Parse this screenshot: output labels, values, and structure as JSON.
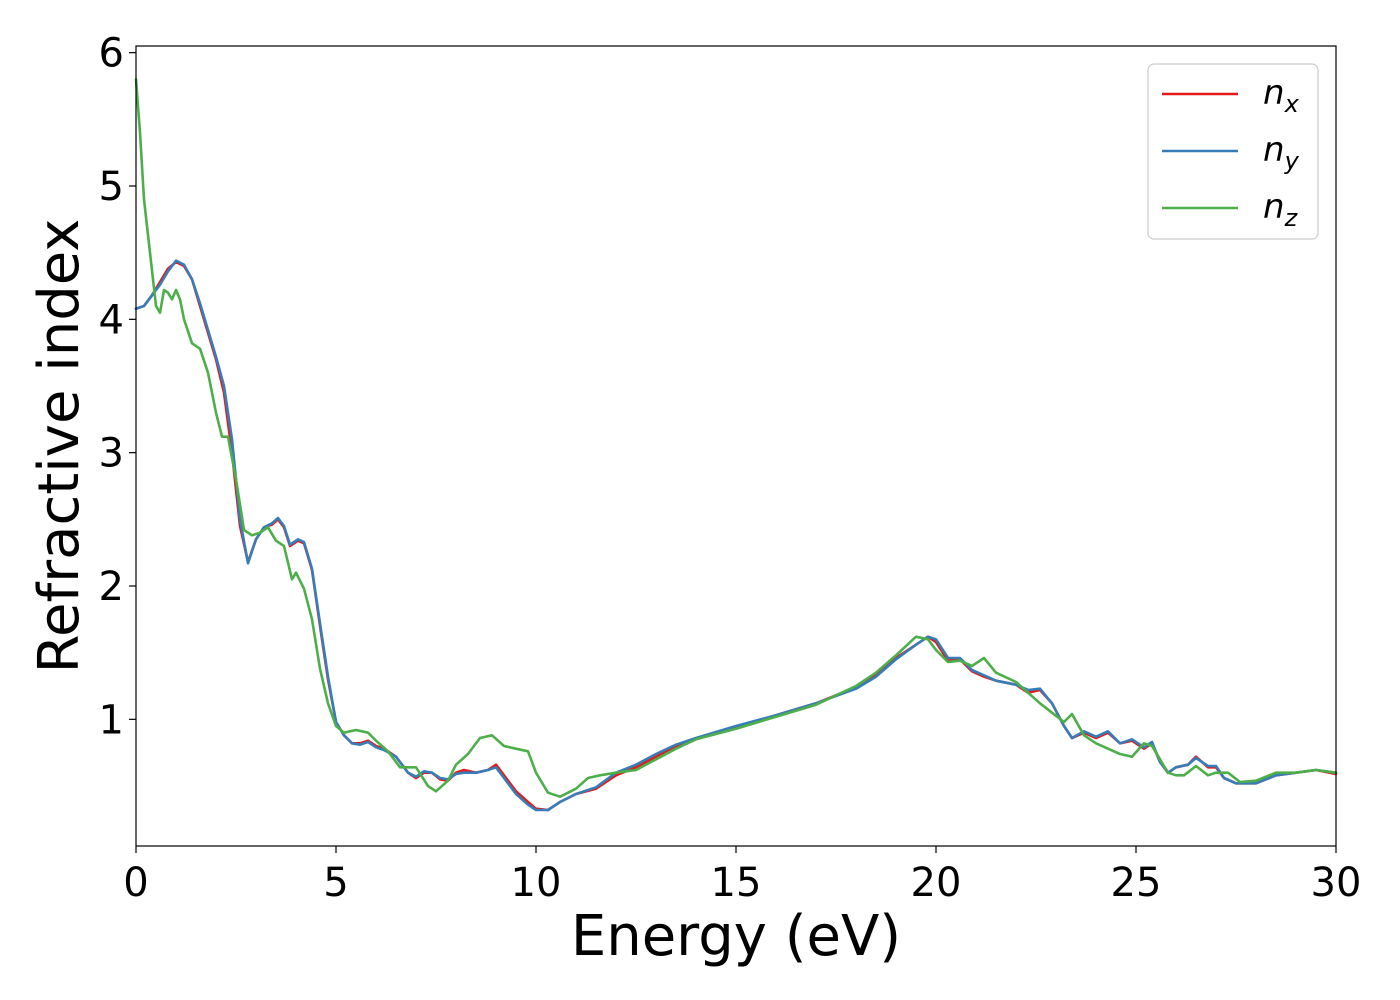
{
  "chart_data": {
    "type": "line",
    "title": "",
    "xlabel": "Energy (eV)",
    "ylabel": "Refractive index",
    "xlim": [
      0,
      30
    ],
    "ylim": [
      0.05,
      6.05
    ],
    "xticks": [
      0,
      5,
      10,
      15,
      20,
      25,
      30
    ],
    "yticks": [
      1,
      2,
      3,
      4,
      5,
      6
    ],
    "xtick_labels": [
      "0",
      "5",
      "10",
      "15",
      "20",
      "25",
      "30"
    ],
    "ytick_labels": [
      "1",
      "2",
      "3",
      "4",
      "5",
      "6"
    ],
    "grid": false,
    "legend_position": "top-right",
    "series": [
      {
        "name": "n_x",
        "label_base": "n",
        "label_sub": "x",
        "color": "#e41a1c",
        "points": [
          [
            0,
            4.08
          ],
          [
            0.2,
            4.1
          ],
          [
            0.4,
            4.18
          ],
          [
            0.6,
            4.28
          ],
          [
            0.8,
            4.38
          ],
          [
            1.0,
            4.43
          ],
          [
            1.2,
            4.4
          ],
          [
            1.4,
            4.3
          ],
          [
            1.6,
            4.1
          ],
          [
            1.8,
            3.9
          ],
          [
            2.0,
            3.7
          ],
          [
            2.2,
            3.45
          ],
          [
            2.4,
            3.0
          ],
          [
            2.6,
            2.45
          ],
          [
            2.8,
            2.18
          ],
          [
            3.0,
            2.35
          ],
          [
            3.2,
            2.44
          ],
          [
            3.4,
            2.46
          ],
          [
            3.55,
            2.5
          ],
          [
            3.7,
            2.44
          ],
          [
            3.85,
            2.3
          ],
          [
            4.05,
            2.34
          ],
          [
            4.2,
            2.32
          ],
          [
            4.4,
            2.12
          ],
          [
            4.6,
            1.7
          ],
          [
            4.8,
            1.3
          ],
          [
            5.0,
            0.98
          ],
          [
            5.2,
            0.88
          ],
          [
            5.4,
            0.82
          ],
          [
            5.6,
            0.82
          ],
          [
            5.8,
            0.84
          ],
          [
            6.0,
            0.8
          ],
          [
            6.2,
            0.78
          ],
          [
            6.5,
            0.72
          ],
          [
            6.8,
            0.6
          ],
          [
            7.0,
            0.56
          ],
          [
            7.2,
            0.6
          ],
          [
            7.4,
            0.6
          ],
          [
            7.6,
            0.55
          ],
          [
            7.8,
            0.54
          ],
          [
            8.0,
            0.6
          ],
          [
            8.2,
            0.62
          ],
          [
            8.5,
            0.6
          ],
          [
            8.8,
            0.62
          ],
          [
            9.0,
            0.66
          ],
          [
            9.2,
            0.58
          ],
          [
            9.5,
            0.46
          ],
          [
            9.8,
            0.38
          ],
          [
            10.0,
            0.33
          ],
          [
            10.3,
            0.32
          ],
          [
            10.6,
            0.38
          ],
          [
            11.0,
            0.44
          ],
          [
            11.5,
            0.48
          ],
          [
            12.0,
            0.58
          ],
          [
            12.5,
            0.64
          ],
          [
            13.0,
            0.72
          ],
          [
            13.5,
            0.8
          ],
          [
            14.0,
            0.85
          ],
          [
            15.0,
            0.94
          ],
          [
            16.0,
            1.03
          ],
          [
            17.0,
            1.12
          ],
          [
            18.0,
            1.24
          ],
          [
            18.5,
            1.33
          ],
          [
            19.0,
            1.46
          ],
          [
            19.5,
            1.56
          ],
          [
            19.8,
            1.62
          ],
          [
            20.0,
            1.58
          ],
          [
            20.3,
            1.44
          ],
          [
            20.6,
            1.45
          ],
          [
            20.9,
            1.36
          ],
          [
            21.2,
            1.32
          ],
          [
            21.5,
            1.29
          ],
          [
            22.0,
            1.26
          ],
          [
            22.3,
            1.2
          ],
          [
            22.6,
            1.22
          ],
          [
            22.9,
            1.12
          ],
          [
            23.2,
            0.95
          ],
          [
            23.4,
            0.86
          ],
          [
            23.7,
            0.9
          ],
          [
            24.0,
            0.86
          ],
          [
            24.3,
            0.9
          ],
          [
            24.6,
            0.82
          ],
          [
            24.9,
            0.84
          ],
          [
            25.2,
            0.78
          ],
          [
            25.4,
            0.82
          ],
          [
            25.6,
            0.68
          ],
          [
            25.8,
            0.6
          ],
          [
            26.0,
            0.64
          ],
          [
            26.3,
            0.66
          ],
          [
            26.5,
            0.72
          ],
          [
            26.8,
            0.64
          ],
          [
            27.0,
            0.64
          ],
          [
            27.2,
            0.56
          ],
          [
            27.5,
            0.52
          ],
          [
            28.0,
            0.52
          ],
          [
            28.5,
            0.58
          ],
          [
            29.0,
            0.6
          ],
          [
            29.5,
            0.62
          ],
          [
            30.0,
            0.59
          ]
        ]
      },
      {
        "name": "n_y",
        "label_base": "n",
        "label_sub": "y",
        "color": "#377eb8",
        "points": [
          [
            0,
            4.08
          ],
          [
            0.2,
            4.1
          ],
          [
            0.4,
            4.18
          ],
          [
            0.6,
            4.26
          ],
          [
            0.8,
            4.36
          ],
          [
            1.0,
            4.44
          ],
          [
            1.2,
            4.41
          ],
          [
            1.4,
            4.3
          ],
          [
            1.6,
            4.12
          ],
          [
            1.8,
            3.92
          ],
          [
            2.0,
            3.72
          ],
          [
            2.2,
            3.5
          ],
          [
            2.4,
            3.1
          ],
          [
            2.6,
            2.5
          ],
          [
            2.8,
            2.17
          ],
          [
            3.0,
            2.35
          ],
          [
            3.2,
            2.44
          ],
          [
            3.4,
            2.47
          ],
          [
            3.55,
            2.51
          ],
          [
            3.7,
            2.45
          ],
          [
            3.85,
            2.31
          ],
          [
            4.05,
            2.35
          ],
          [
            4.2,
            2.33
          ],
          [
            4.4,
            2.13
          ],
          [
            4.6,
            1.72
          ],
          [
            4.8,
            1.32
          ],
          [
            5.0,
            0.98
          ],
          [
            5.2,
            0.88
          ],
          [
            5.4,
            0.82
          ],
          [
            5.6,
            0.81
          ],
          [
            5.8,
            0.83
          ],
          [
            6.0,
            0.79
          ],
          [
            6.2,
            0.77
          ],
          [
            6.5,
            0.72
          ],
          [
            6.8,
            0.6
          ],
          [
            7.0,
            0.57
          ],
          [
            7.2,
            0.61
          ],
          [
            7.4,
            0.6
          ],
          [
            7.6,
            0.56
          ],
          [
            7.8,
            0.55
          ],
          [
            8.0,
            0.59
          ],
          [
            8.2,
            0.6
          ],
          [
            8.5,
            0.6
          ],
          [
            8.8,
            0.62
          ],
          [
            9.0,
            0.64
          ],
          [
            9.2,
            0.56
          ],
          [
            9.5,
            0.44
          ],
          [
            9.8,
            0.36
          ],
          [
            10.0,
            0.32
          ],
          [
            10.3,
            0.32
          ],
          [
            10.6,
            0.38
          ],
          [
            11.0,
            0.44
          ],
          [
            11.5,
            0.49
          ],
          [
            12.0,
            0.6
          ],
          [
            12.5,
            0.66
          ],
          [
            13.0,
            0.74
          ],
          [
            13.5,
            0.81
          ],
          [
            14.0,
            0.86
          ],
          [
            15.0,
            0.95
          ],
          [
            16.0,
            1.03
          ],
          [
            17.0,
            1.12
          ],
          [
            18.0,
            1.23
          ],
          [
            18.5,
            1.32
          ],
          [
            19.0,
            1.45
          ],
          [
            19.5,
            1.56
          ],
          [
            19.8,
            1.62
          ],
          [
            20.0,
            1.6
          ],
          [
            20.3,
            1.46
          ],
          [
            20.6,
            1.46
          ],
          [
            20.9,
            1.37
          ],
          [
            21.2,
            1.33
          ],
          [
            21.5,
            1.29
          ],
          [
            22.0,
            1.26
          ],
          [
            22.3,
            1.22
          ],
          [
            22.6,
            1.23
          ],
          [
            22.9,
            1.12
          ],
          [
            23.2,
            0.95
          ],
          [
            23.4,
            0.86
          ],
          [
            23.7,
            0.91
          ],
          [
            24.0,
            0.87
          ],
          [
            24.3,
            0.91
          ],
          [
            24.6,
            0.82
          ],
          [
            24.9,
            0.85
          ],
          [
            25.2,
            0.79
          ],
          [
            25.4,
            0.83
          ],
          [
            25.6,
            0.68
          ],
          [
            25.8,
            0.6
          ],
          [
            26.0,
            0.64
          ],
          [
            26.3,
            0.66
          ],
          [
            26.5,
            0.71
          ],
          [
            26.8,
            0.65
          ],
          [
            27.0,
            0.65
          ],
          [
            27.2,
            0.56
          ],
          [
            27.5,
            0.52
          ],
          [
            28.0,
            0.52
          ],
          [
            28.5,
            0.58
          ],
          [
            29.0,
            0.6
          ],
          [
            29.5,
            0.62
          ],
          [
            30.0,
            0.6
          ]
        ]
      },
      {
        "name": "n_z",
        "label_base": "n",
        "label_sub": "z",
        "color": "#4daf4a",
        "points": [
          [
            0,
            5.8
          ],
          [
            0.1,
            5.4
          ],
          [
            0.2,
            4.9
          ],
          [
            0.35,
            4.5
          ],
          [
            0.5,
            4.1
          ],
          [
            0.6,
            4.05
          ],
          [
            0.7,
            4.22
          ],
          [
            0.8,
            4.2
          ],
          [
            0.9,
            4.15
          ],
          [
            1.0,
            4.22
          ],
          [
            1.1,
            4.15
          ],
          [
            1.2,
            4.0
          ],
          [
            1.4,
            3.82
          ],
          [
            1.6,
            3.78
          ],
          [
            1.8,
            3.6
          ],
          [
            2.0,
            3.3
          ],
          [
            2.15,
            3.12
          ],
          [
            2.3,
            3.12
          ],
          [
            2.5,
            2.8
          ],
          [
            2.7,
            2.42
          ],
          [
            2.9,
            2.38
          ],
          [
            3.1,
            2.4
          ],
          [
            3.3,
            2.44
          ],
          [
            3.5,
            2.34
          ],
          [
            3.7,
            2.3
          ],
          [
            3.9,
            2.05
          ],
          [
            4.0,
            2.1
          ],
          [
            4.2,
            1.98
          ],
          [
            4.4,
            1.75
          ],
          [
            4.6,
            1.38
          ],
          [
            4.8,
            1.12
          ],
          [
            5.0,
            0.95
          ],
          [
            5.2,
            0.9
          ],
          [
            5.5,
            0.92
          ],
          [
            5.8,
            0.9
          ],
          [
            6.0,
            0.84
          ],
          [
            6.3,
            0.76
          ],
          [
            6.6,
            0.64
          ],
          [
            7.0,
            0.64
          ],
          [
            7.3,
            0.5
          ],
          [
            7.5,
            0.46
          ],
          [
            7.8,
            0.54
          ],
          [
            8.0,
            0.66
          ],
          [
            8.3,
            0.74
          ],
          [
            8.6,
            0.86
          ],
          [
            8.9,
            0.88
          ],
          [
            9.2,
            0.8
          ],
          [
            9.5,
            0.78
          ],
          [
            9.8,
            0.76
          ],
          [
            10.0,
            0.6
          ],
          [
            10.3,
            0.45
          ],
          [
            10.6,
            0.42
          ],
          [
            11.0,
            0.48
          ],
          [
            11.3,
            0.56
          ],
          [
            11.6,
            0.58
          ],
          [
            12.0,
            0.6
          ],
          [
            12.5,
            0.62
          ],
          [
            13.0,
            0.7
          ],
          [
            13.5,
            0.78
          ],
          [
            14.0,
            0.85
          ],
          [
            15.0,
            0.93
          ],
          [
            16.0,
            1.02
          ],
          [
            17.0,
            1.11
          ],
          [
            18.0,
            1.25
          ],
          [
            18.5,
            1.35
          ],
          [
            19.0,
            1.48
          ],
          [
            19.5,
            1.62
          ],
          [
            19.8,
            1.6
          ],
          [
            20.0,
            1.52
          ],
          [
            20.3,
            1.43
          ],
          [
            20.6,
            1.44
          ],
          [
            20.9,
            1.4
          ],
          [
            21.2,
            1.46
          ],
          [
            21.5,
            1.35
          ],
          [
            22.0,
            1.28
          ],
          [
            22.3,
            1.2
          ],
          [
            22.6,
            1.12
          ],
          [
            22.9,
            1.05
          ],
          [
            23.2,
            0.98
          ],
          [
            23.4,
            1.04
          ],
          [
            23.7,
            0.88
          ],
          [
            24.0,
            0.82
          ],
          [
            24.3,
            0.78
          ],
          [
            24.6,
            0.74
          ],
          [
            24.9,
            0.72
          ],
          [
            25.2,
            0.82
          ],
          [
            25.4,
            0.8
          ],
          [
            25.6,
            0.7
          ],
          [
            25.8,
            0.6
          ],
          [
            26.0,
            0.58
          ],
          [
            26.2,
            0.58
          ],
          [
            26.5,
            0.65
          ],
          [
            26.8,
            0.58
          ],
          [
            27.0,
            0.6
          ],
          [
            27.3,
            0.6
          ],
          [
            27.6,
            0.53
          ],
          [
            28.0,
            0.54
          ],
          [
            28.5,
            0.6
          ],
          [
            29.0,
            0.6
          ],
          [
            29.5,
            0.62
          ],
          [
            30.0,
            0.6
          ]
        ]
      }
    ]
  }
}
